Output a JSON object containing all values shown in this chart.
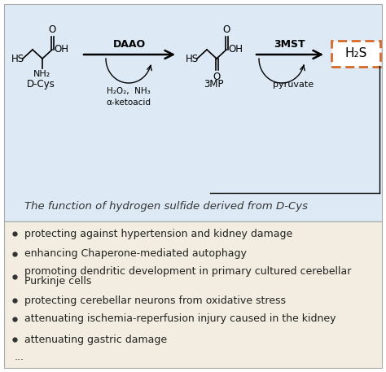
{
  "bg_top_color": "#ddeaf5",
  "bg_bottom_color": "#f2ede0",
  "h2s_box_color": "#d4692a",
  "title_text": "The function of hydrogen sulfide derived from D-Cys",
  "bullet_points": [
    "protecting against hypertension and kidney damage",
    "enhancing Chaperone-mediated autophagy",
    "promoting dendritic development in primary cultured cerebellar\nPurkinje cells",
    "protecting cerebellar neurons from oxidative stress",
    "attenuating ischemia-reperfusion injury caused in the kidney",
    "attenuating gastric damage"
  ],
  "ellipsis": "...",
  "daao_label": "DAAO",
  "3mst_label": "3MST",
  "dcys_label": "D-Cys",
  "byproducts_label": "H₂O₂,  NH₃\nα-ketoacid",
  "3mp_label": "3MP",
  "pyruvate_label": "pyruvate",
  "h2s_label": "H₂S",
  "title_fontsize": 9.5,
  "bullet_fontsize": 9,
  "chem_fontsize": 8.5
}
